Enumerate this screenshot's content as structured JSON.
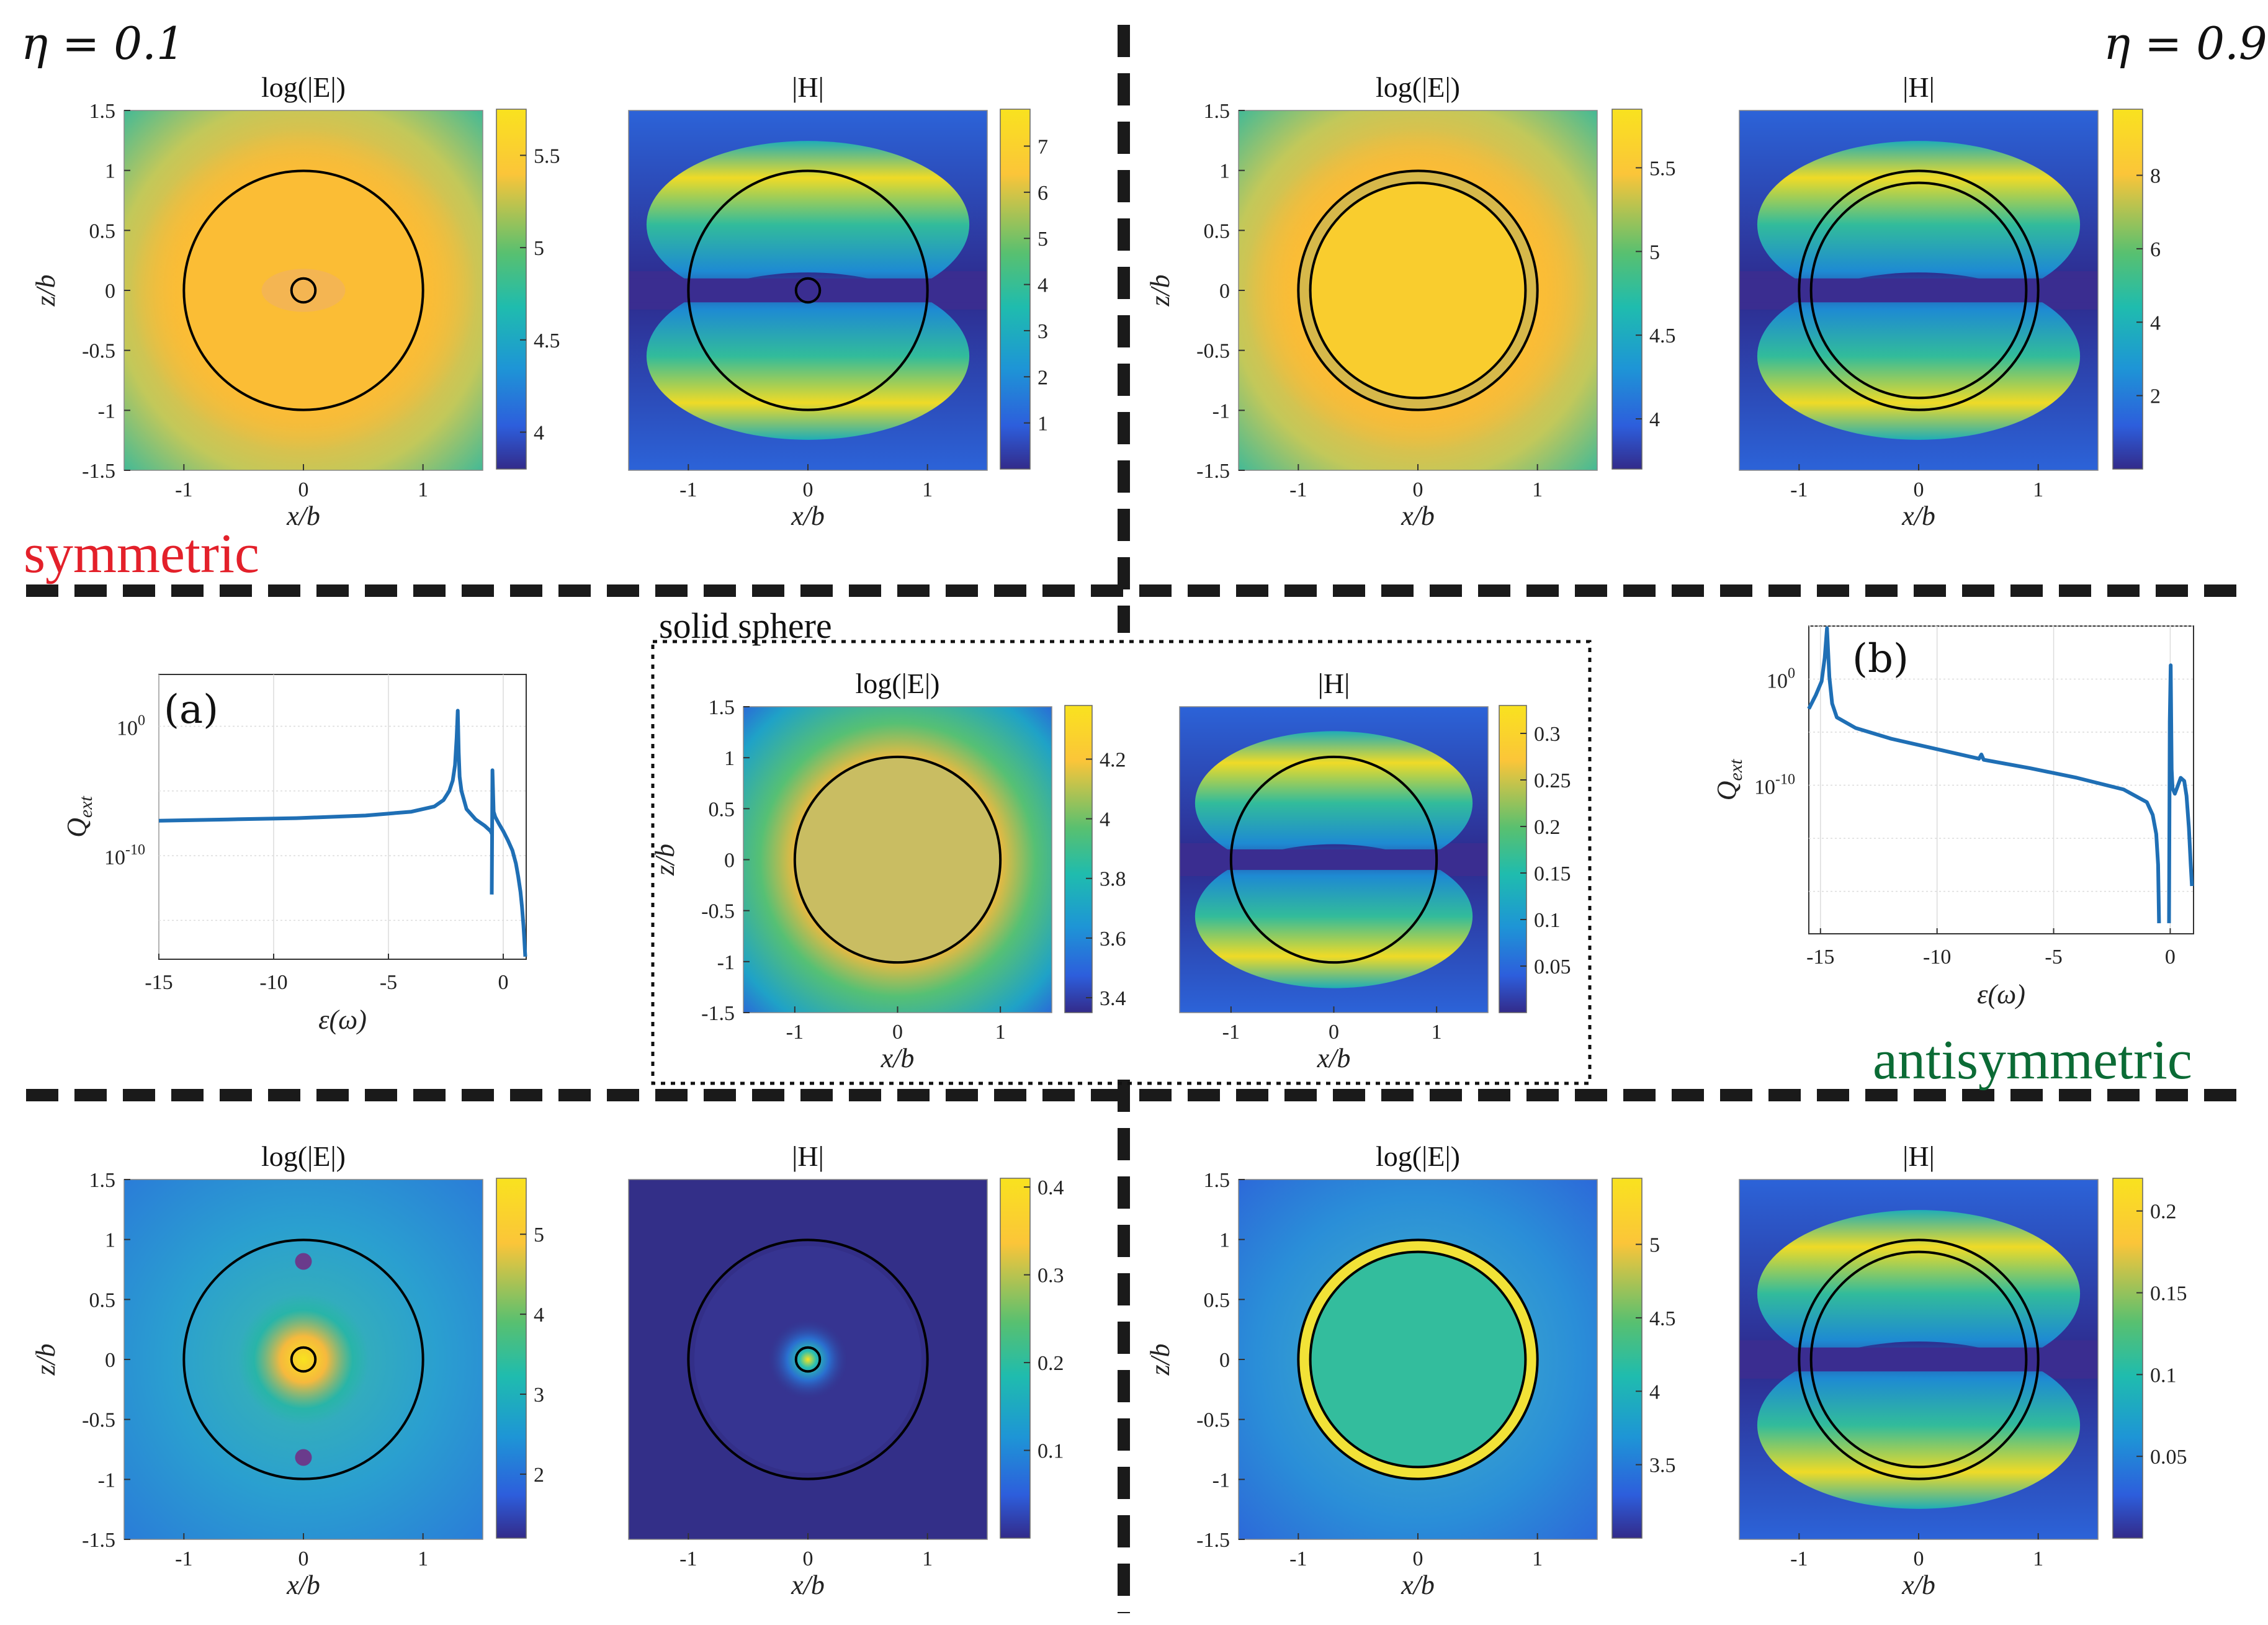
{
  "labels": {
    "eta_left": "η = 0.1",
    "eta_right": "η = 0.9",
    "symmetric": "symmetric",
    "antisymmetric": "antisymmetric",
    "solid_sphere": "solid sphere",
    "xlabel_map": "x/b",
    "zlabel_map": "z/b",
    "title_E": "log(|E|)",
    "title_H": "|H|"
  },
  "colors": {
    "symmetric": "#e3202a",
    "antisymmetric": "#0b6b35",
    "line": "#1f6fb5",
    "divider": "#1a1a1a"
  },
  "chart_data": [
    {
      "id": "tl-E",
      "type": "heatmap",
      "title": "log(|E|)",
      "xlabel": "x/b",
      "ylabel": "z/b",
      "xlim": [
        -1.5,
        1.5
      ],
      "ylim": [
        -1.5,
        1.5
      ],
      "xticks": [
        -1,
        0,
        1
      ],
      "yticks": [
        -1.5,
        -1,
        -0.5,
        0,
        0.5,
        1,
        1.5
      ],
      "colorbar": {
        "range": [
          3.8,
          5.75
        ],
        "ticks": [
          4,
          4.5,
          5,
          5.5
        ]
      },
      "circles": [
        1,
        0.1
      ],
      "pattern": "sym-E"
    },
    {
      "id": "tl-H",
      "type": "heatmap",
      "title": "|H|",
      "xlabel": "x/b",
      "ylabel": "",
      "xlim": [
        -1.5,
        1.5
      ],
      "ylim": [
        -1.5,
        1.5
      ],
      "xticks": [
        -1,
        0,
        1
      ],
      "yticks": [],
      "colorbar": {
        "range": [
          0,
          7.8
        ],
        "ticks": [
          1,
          2,
          3,
          4,
          5,
          6,
          7
        ]
      },
      "circles": [
        1,
        0.1
      ],
      "pattern": "H"
    },
    {
      "id": "tr-E",
      "type": "heatmap",
      "title": "log(|E|)",
      "xlabel": "x/b",
      "ylabel": "z/b",
      "xlim": [
        -1.5,
        1.5
      ],
      "ylim": [
        -1.5,
        1.5
      ],
      "xticks": [
        -1,
        0,
        1
      ],
      "yticks": [
        -1.5,
        -1,
        -0.5,
        0,
        0.5,
        1,
        1.5
      ],
      "colorbar": {
        "range": [
          3.7,
          5.85
        ],
        "ticks": [
          4,
          4.5,
          5,
          5.5
        ]
      },
      "circles": [
        1,
        0.9
      ],
      "pattern": "shell-E"
    },
    {
      "id": "tr-H",
      "type": "heatmap",
      "title": "|H|",
      "xlabel": "x/b",
      "ylabel": "",
      "xlim": [
        -1.5,
        1.5
      ],
      "ylim": [
        -1.5,
        1.5
      ],
      "xticks": [
        -1,
        0,
        1
      ],
      "yticks": [],
      "colorbar": {
        "range": [
          0,
          9.8
        ],
        "ticks": [
          2,
          4,
          6,
          8
        ]
      },
      "circles": [
        1,
        0.9
      ],
      "pattern": "H"
    },
    {
      "id": "mid-E",
      "type": "heatmap",
      "title": "log(|E|)",
      "xlabel": "x/b",
      "ylabel": "z/b",
      "xlim": [
        -1.5,
        1.5
      ],
      "ylim": [
        -1.5,
        1.5
      ],
      "xticks": [
        -1,
        0,
        1
      ],
      "yticks": [
        -1.5,
        -1,
        -0.5,
        0,
        0.5,
        1,
        1.5
      ],
      "colorbar": {
        "range": [
          3.35,
          4.38
        ],
        "ticks": [
          3.4,
          3.6,
          3.8,
          4,
          4.2
        ]
      },
      "circles": [
        1
      ],
      "pattern": "solid-E"
    },
    {
      "id": "mid-H",
      "type": "heatmap",
      "title": "|H|",
      "xlabel": "x/b",
      "ylabel": "",
      "xlim": [
        -1.5,
        1.5
      ],
      "ylim": [
        -1.5,
        1.5
      ],
      "xticks": [
        -1,
        0,
        1
      ],
      "yticks": [],
      "colorbar": {
        "range": [
          0,
          0.33
        ],
        "ticks": [
          0.05,
          0.1,
          0.15,
          0.2,
          0.25,
          0.3
        ]
      },
      "circles": [
        1
      ],
      "pattern": "H"
    },
    {
      "id": "bl-E",
      "type": "heatmap",
      "title": "log(|E|)",
      "xlabel": "x/b",
      "ylabel": "z/b",
      "xlim": [
        -1.5,
        1.5
      ],
      "ylim": [
        -1.5,
        1.5
      ],
      "xticks": [
        -1,
        0,
        1
      ],
      "yticks": [
        -1.5,
        -1,
        -0.5,
        0,
        0.5,
        1,
        1.5
      ],
      "colorbar": {
        "range": [
          1.2,
          5.7
        ],
        "ticks": [
          2,
          3,
          4,
          5
        ]
      },
      "circles": [
        1,
        0.1
      ],
      "pattern": "anti-E"
    },
    {
      "id": "bl-H",
      "type": "heatmap",
      "title": "|H|",
      "xlabel": "x/b",
      "ylabel": "",
      "xlim": [
        -1.5,
        1.5
      ],
      "ylim": [
        -1.5,
        1.5
      ],
      "xticks": [
        -1,
        0,
        1
      ],
      "yticks": [],
      "colorbar": {
        "range": [
          0,
          0.41
        ],
        "ticks": [
          0.1,
          0.2,
          0.3,
          0.4
        ]
      },
      "circles": [
        1,
        0.1
      ],
      "pattern": "dipoleH"
    },
    {
      "id": "br-E",
      "type": "heatmap",
      "title": "log(|E|)",
      "xlabel": "x/b",
      "ylabel": "z/b",
      "xlim": [
        -1.5,
        1.5
      ],
      "ylim": [
        -1.5,
        1.5
      ],
      "xticks": [
        -1,
        0,
        1
      ],
      "yticks": [
        -1.5,
        -1,
        -0.5,
        0,
        0.5,
        1,
        1.5
      ],
      "colorbar": {
        "range": [
          3.0,
          5.45
        ],
        "ticks": [
          3.5,
          4,
          4.5,
          5
        ]
      },
      "circles": [
        1,
        0.9
      ],
      "pattern": "anti-shell-E"
    },
    {
      "id": "br-H",
      "type": "heatmap",
      "title": "|H|",
      "xlabel": "x/b",
      "ylabel": "",
      "xlim": [
        -1.5,
        1.5
      ],
      "ylim": [
        -1.5,
        1.5
      ],
      "xticks": [
        -1,
        0,
        1
      ],
      "yticks": [],
      "colorbar": {
        "range": [
          0,
          0.22
        ],
        "ticks": [
          0.05,
          0.1,
          0.15,
          0.2
        ]
      },
      "circles": [
        1,
        0.9
      ],
      "pattern": "H"
    },
    {
      "id": "line-a",
      "type": "line",
      "label": "(a)",
      "xlabel": "ε(ω)",
      "ylabel": "Q_ext",
      "xlim": [
        -15,
        1
      ],
      "xticks": [
        -15,
        -10,
        -5,
        0
      ],
      "ylog": true,
      "ylim_exp": [
        -18,
        4
      ],
      "ytick_exp": [
        0,
        -10
      ],
      "x": [
        -15,
        -12,
        -9,
        -6,
        -4,
        -3,
        -2.6,
        -2.35,
        -2.2,
        -2.1,
        -2.03,
        -1.98,
        -1.94,
        -1.9,
        -1.82,
        -1.6,
        -1.2,
        -0.8,
        -0.55,
        -0.5
      ],
      "y_exp": [
        -7.3,
        -7.2,
        -7.1,
        -6.9,
        -6.6,
        -6.2,
        -5.7,
        -5.0,
        -4.2,
        -3.0,
        -0.9,
        1.2,
        -2.0,
        -3.9,
        -5.0,
        -6.4,
        -7.2,
        -7.7,
        -8.1,
        -8.3
      ],
      "x2": [
        -0.5,
        -0.47,
        -0.42,
        -0.35,
        -0.2,
        0.0,
        0.2,
        0.4,
        0.55,
        0.65,
        0.75,
        0.82,
        0.88,
        0.92,
        0.96
      ],
      "y2_exp": [
        -13,
        -3.4,
        -6.6,
        -7.0,
        -7.5,
        -8.1,
        -8.8,
        -9.6,
        -10.6,
        -11.6,
        -12.8,
        -14,
        -15.4,
        -16.5,
        -17.8
      ]
    },
    {
      "id": "line-b",
      "type": "line",
      "label": "(b)",
      "xlabel": "ε(ω)",
      "ylabel": "Q_ext",
      "xlim": [
        -15.5,
        1
      ],
      "xticks": [
        -15,
        -10,
        -5,
        0
      ],
      "ylog": true,
      "ylim_exp": [
        -24,
        5
      ],
      "ytick_exp": [
        0,
        -10
      ],
      "x": [
        -15.5,
        -15.2,
        -14.95,
        -14.82,
        -14.72,
        -14.62,
        -14.5,
        -14.3,
        -13.5,
        -12,
        -10,
        -8.2,
        -8.1,
        -8.0,
        -6,
        -4,
        -2,
        -1.0,
        -0.75,
        -0.6,
        -0.52,
        -0.48
      ],
      "y_exp": [
        -2.8,
        -1.5,
        -0.2,
        2.0,
        4.8,
        0.2,
        -2.3,
        -3.6,
        -4.6,
        -5.6,
        -6.6,
        -7.5,
        -7.1,
        -7.6,
        -8.4,
        -9.3,
        -10.4,
        -11.6,
        -12.8,
        -14.6,
        -17.5,
        -23
      ],
      "x2": [
        -0.05,
        -0.02,
        0.02,
        0.06,
        0.1,
        0.2,
        0.3,
        0.45,
        0.6,
        0.7,
        0.8,
        0.88,
        0.93
      ],
      "y2_exp": [
        -23,
        -4,
        1.3,
        -8.5,
        -10.3,
        -10.8,
        -10.2,
        -9.3,
        -9.6,
        -11,
        -14,
        -17.5,
        -19.5
      ]
    }
  ]
}
